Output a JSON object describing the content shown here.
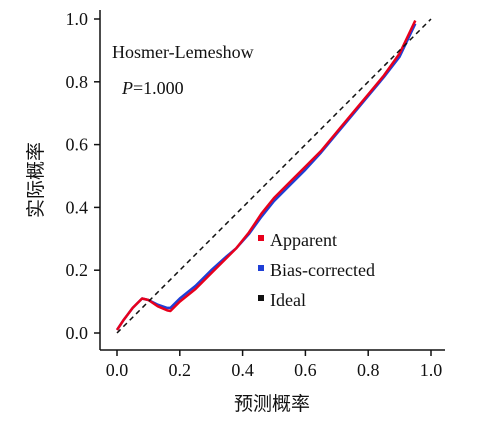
{
  "chart_data": {
    "type": "line",
    "xlabel": "预测概率",
    "ylabel": "实际概率",
    "xlim": [
      0,
      1
    ],
    "ylim": [
      0,
      1
    ],
    "xticks": [
      "0.0",
      "0.2",
      "0.4",
      "0.6",
      "0.8",
      "1.0"
    ],
    "yticks": [
      "0.0",
      "0.2",
      "0.4",
      "0.6",
      "0.8",
      "1.0"
    ],
    "annotation": {
      "test": "Hosmer-Lemeshow",
      "p_label": "P",
      "p_value": "=1.000"
    },
    "legend_position": "bottom-right",
    "series": [
      {
        "name": "Apparent",
        "color": "#e8001c",
        "x": [
          0.0,
          0.02,
          0.05,
          0.08,
          0.1,
          0.13,
          0.16,
          0.17,
          0.2,
          0.25,
          0.3,
          0.35,
          0.38,
          0.42,
          0.46,
          0.5,
          0.55,
          0.6,
          0.65,
          0.7,
          0.75,
          0.8,
          0.85,
          0.9,
          0.95
        ],
        "y": [
          0.01,
          0.04,
          0.08,
          0.11,
          0.105,
          0.085,
          0.072,
          0.07,
          0.1,
          0.14,
          0.19,
          0.24,
          0.27,
          0.32,
          0.38,
          0.43,
          0.48,
          0.53,
          0.58,
          0.64,
          0.7,
          0.76,
          0.82,
          0.89,
          0.995
        ]
      },
      {
        "name": "Bias-corrected",
        "color": "#1f3fd6",
        "x": [
          0.0,
          0.02,
          0.05,
          0.08,
          0.1,
          0.13,
          0.16,
          0.17,
          0.2,
          0.25,
          0.3,
          0.35,
          0.38,
          0.42,
          0.46,
          0.5,
          0.55,
          0.6,
          0.65,
          0.7,
          0.75,
          0.8,
          0.85,
          0.9,
          0.95
        ],
        "y": [
          0.01,
          0.04,
          0.08,
          0.11,
          0.105,
          0.09,
          0.08,
          0.08,
          0.11,
          0.15,
          0.2,
          0.245,
          0.27,
          0.315,
          0.37,
          0.42,
          0.47,
          0.52,
          0.575,
          0.635,
          0.695,
          0.755,
          0.815,
          0.88,
          0.985
        ]
      },
      {
        "name": "Ideal",
        "color": "#111111",
        "x": [
          0.0,
          1.0
        ],
        "y": [
          0.0,
          1.0
        ]
      }
    ]
  }
}
